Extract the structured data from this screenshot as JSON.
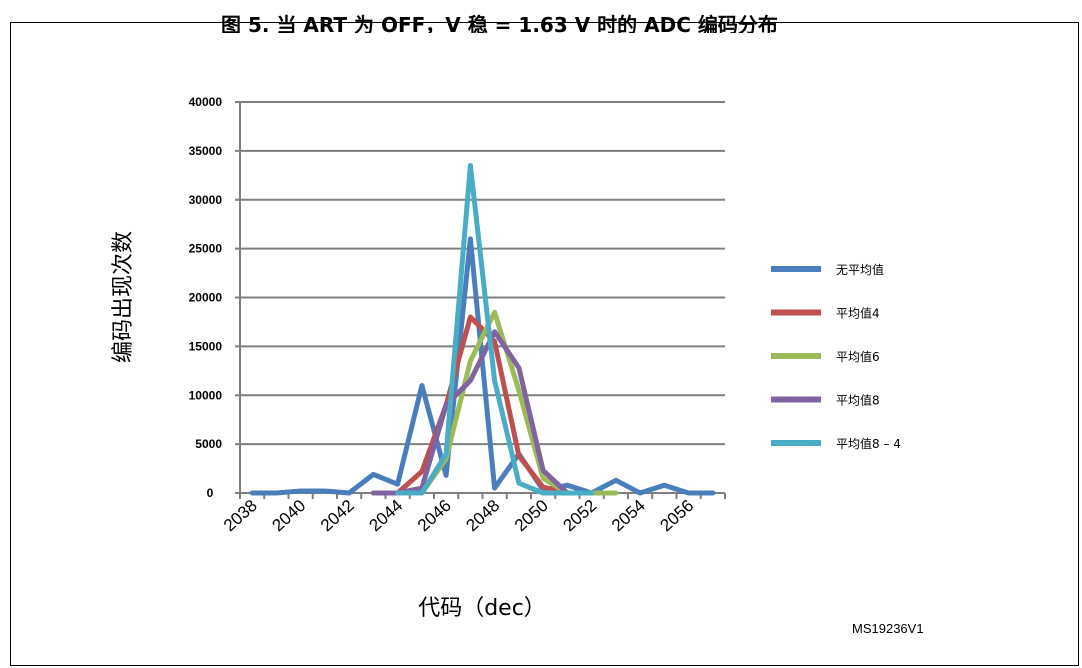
{
  "figure": {
    "title": "图 5. 当 ART 为 OFF，V 稳 = 1.63 V 时的 ADC 编码分布",
    "id": "MS19236V1"
  },
  "chart_data": {
    "type": "line",
    "title": "图 5. 当 ART 为 OFF，V 稳 = 1.63 V 时的 ADC 编码分布",
    "xlabel": "代码（dec）",
    "ylabel": "编码出现次数",
    "x_ticks": [
      2038,
      2040,
      2042,
      2044,
      2046,
      2048,
      2050,
      2052,
      2054,
      2056
    ],
    "xlim": [
      2037.5,
      2057.5
    ],
    "ylim": [
      0,
      40000
    ],
    "y_ticks": [
      0,
      5000,
      10000,
      15000,
      20000,
      25000,
      30000,
      35000,
      40000
    ],
    "grid": true,
    "legend_position": "right",
    "series": [
      {
        "name": "无平均值",
        "color": "#4a7ebb",
        "points": [
          [
            2038,
            0
          ],
          [
            2039,
            0
          ],
          [
            2040,
            200
          ],
          [
            2041,
            200
          ],
          [
            2042,
            0
          ],
          [
            2043,
            1900
          ],
          [
            2044,
            900
          ],
          [
            2045,
            11000
          ],
          [
            2046,
            1800
          ],
          [
            2047,
            26000
          ],
          [
            2048,
            500
          ],
          [
            2049,
            4000
          ],
          [
            2050,
            300
          ],
          [
            2051,
            800
          ],
          [
            2052,
            0
          ],
          [
            2053,
            1300
          ],
          [
            2054,
            0
          ],
          [
            2055,
            800
          ],
          [
            2056,
            0
          ],
          [
            2057,
            0
          ]
        ]
      },
      {
        "name": "平均值4",
        "color": "#c0504d",
        "points": [
          [
            2043,
            0
          ],
          [
            2044,
            0
          ],
          [
            2045,
            2200
          ],
          [
            2046,
            9000
          ],
          [
            2047,
            18000
          ],
          [
            2048,
            15500
          ],
          [
            2049,
            3800
          ],
          [
            2050,
            600
          ],
          [
            2051,
            0
          ],
          [
            2052,
            0
          ]
        ]
      },
      {
        "name": "平均值6",
        "color": "#9bbb59",
        "points": [
          [
            2044,
            0
          ],
          [
            2045,
            0
          ],
          [
            2046,
            3500
          ],
          [
            2047,
            13500
          ],
          [
            2048,
            18500
          ],
          [
            2049,
            10500
          ],
          [
            2050,
            1500
          ],
          [
            2051,
            0
          ],
          [
            2052,
            0
          ],
          [
            2053,
            0
          ]
        ]
      },
      {
        "name": "平均值8",
        "color": "#8064a2",
        "points": [
          [
            2043,
            0
          ],
          [
            2044,
            0
          ],
          [
            2045,
            500
          ],
          [
            2046,
            9000
          ],
          [
            2047,
            11500
          ],
          [
            2048,
            16500
          ],
          [
            2049,
            12800
          ],
          [
            2050,
            2300
          ],
          [
            2051,
            0
          ],
          [
            2052,
            0
          ]
        ]
      },
      {
        "name": "平均值8 – 4",
        "color": "#4bacc6",
        "points": [
          [
            2044,
            0
          ],
          [
            2045,
            0
          ],
          [
            2046,
            4000
          ],
          [
            2047,
            33500
          ],
          [
            2048,
            11500
          ],
          [
            2049,
            1000
          ],
          [
            2050,
            0
          ],
          [
            2051,
            0
          ],
          [
            2052,
            0
          ]
        ]
      }
    ]
  }
}
